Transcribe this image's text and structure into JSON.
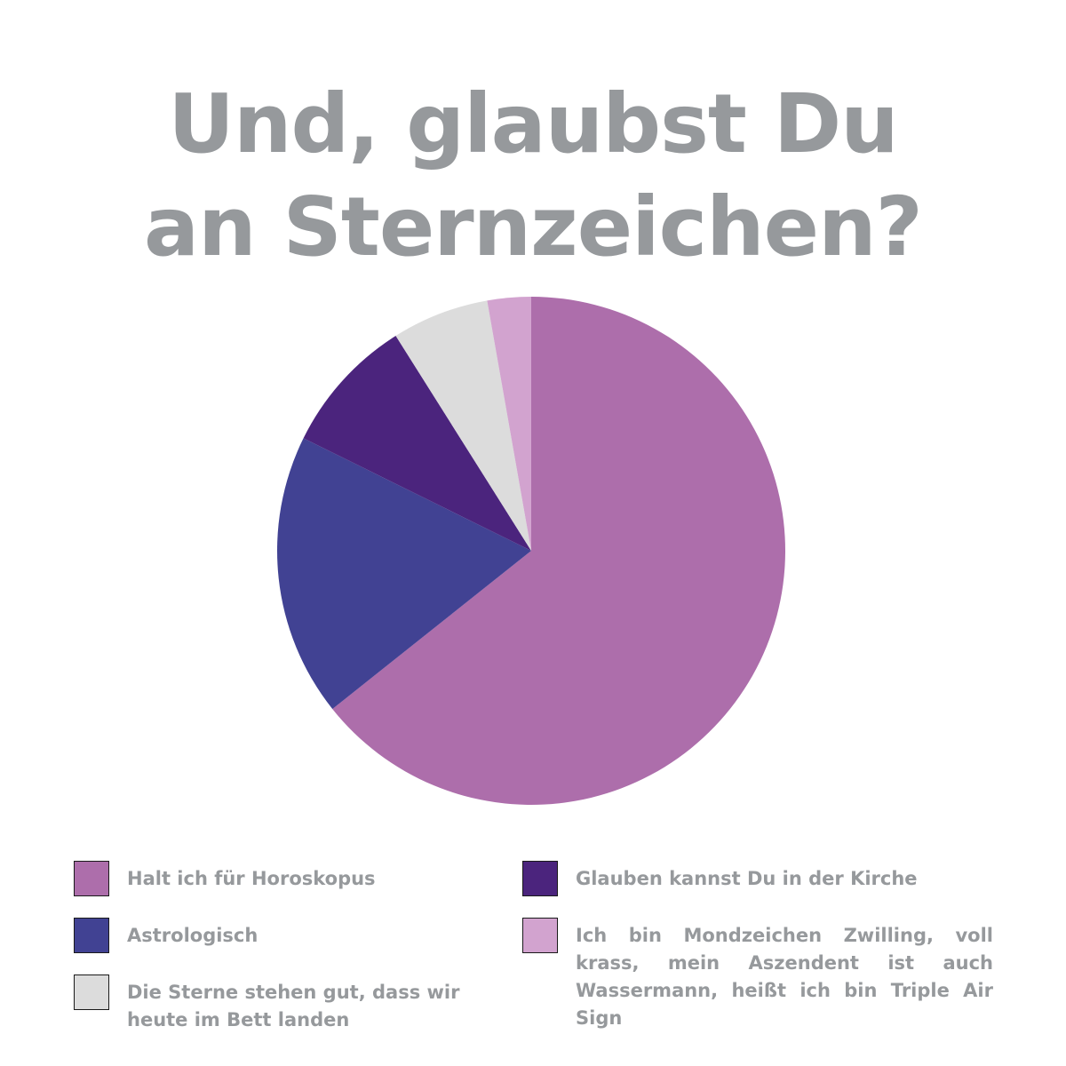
{
  "chart_data": {
    "type": "pie",
    "title_lines": [
      "Und, glaubst Du",
      "an Sternzeichen?"
    ],
    "slices": [
      {
        "label": "Halt ich für Horoskopus",
        "value": 62.5,
        "color": "#ad6eab"
      },
      {
        "label": "Astrologisch",
        "value": 17.5,
        "color": "#414293"
      },
      {
        "label": "Glauben kannst Du in der Kirche",
        "value": 8.5,
        "color": "#4b247d"
      },
      {
        "label": "Die Sterne stehen gut, dass wir heute im Bett landen",
        "value": 6.0,
        "color": "#dcdcdc"
      },
      {
        "label": "Ich bin Mondzeichen Zwilling, voll krass, mein Aszendent ist auch Wassermann, heißt ich bin Triple Air Sign",
        "value": 2.7,
        "color": "#d2a3cf"
      }
    ],
    "legend_placement": "bottom"
  }
}
